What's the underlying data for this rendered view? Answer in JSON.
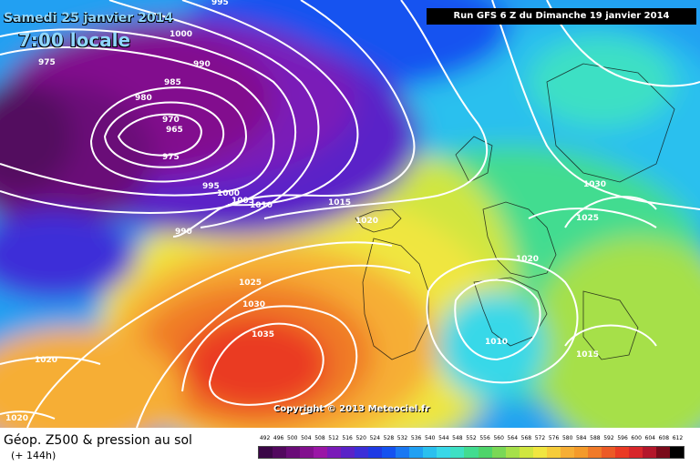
{
  "header": {
    "date": "Samedi 25 janvier 2014",
    "time": "7:00 locale",
    "run": "Run GFS 6 Z du Dimanche 19 janvier 2014"
  },
  "footer": {
    "product": "Géop. Z500 & pression au sol",
    "forecast_hour": "(+ 144h)",
    "copyright": "Copyright © 2013 Meteociel.fr"
  },
  "isobar_labels": [
    "995",
    "1000",
    "990",
    "975",
    "985",
    "980",
    "970",
    "965",
    "975",
    "995",
    "1000",
    "1005",
    "1010",
    "990",
    "1015",
    "1020",
    "1025",
    "1030",
    "1035",
    "1020",
    "1020",
    "1010",
    "1015",
    "1030",
    "1025"
  ],
  "colors": {
    "label_blue": "#8fd6ff",
    "ocean_purple_dark": "#3a0a5a",
    "purple": "#7a1aa8",
    "blue": "#1a3ad8",
    "cyan": "#2ab8f0",
    "green": "#4ed06a",
    "yellow": "#f0e640",
    "orange": "#f49a2a",
    "red": "#ee3a2a"
  },
  "scale": {
    "labels": [
      "492",
      "496",
      "500",
      "504",
      "508",
      "512",
      "516",
      "520",
      "524",
      "528",
      "532",
      "536",
      "540",
      "544",
      "548",
      "552",
      "556",
      "560",
      "564",
      "568",
      "572",
      "576",
      "580",
      "584",
      "588",
      "592",
      "596",
      "600",
      "604",
      "608",
      "612"
    ],
    "colors": [
      "#3a0646",
      "#52085e",
      "#6a0c78",
      "#82108e",
      "#9a16a6",
      "#7a1ab8",
      "#5a22c8",
      "#3c2ed8",
      "#1f3ae4",
      "#1452f0",
      "#1a78f2",
      "#20a0f2",
      "#2ac0ee",
      "#38d8e8",
      "#3ee0c4",
      "#42dc90",
      "#4ed46a",
      "#7ad856",
      "#a6e04a",
      "#d0e640",
      "#f0e640",
      "#f6cc3a",
      "#f6ae34",
      "#f49a2a",
      "#f07a28",
      "#ec5a26",
      "#ea3a24",
      "#d8262a",
      "#b4162a",
      "#7a0a1a",
      "#000000"
    ]
  }
}
